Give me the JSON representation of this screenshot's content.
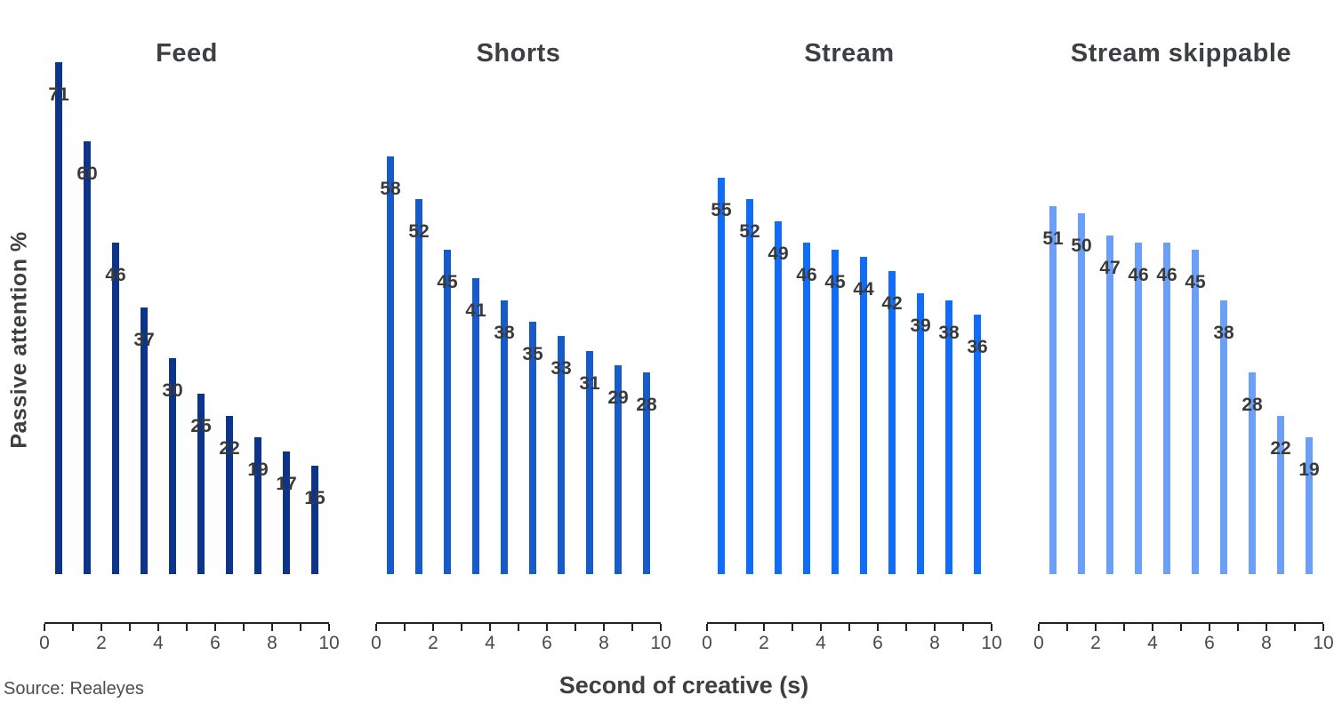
{
  "ylabel": "Passive attention %",
  "xlabel": "Second of creative (s)",
  "source": "Source: Realeyes",
  "chart_data": {
    "type": "bar",
    "layout": "small-multiples, 4 panels side by side, shared y scale, no gridlines, no y axis line",
    "title": "",
    "xlabel": "Second of creative (s)",
    "ylabel": "Passive attention %",
    "x": [
      0.5,
      1.5,
      2.5,
      3.5,
      4.5,
      5.5,
      6.5,
      7.5,
      8.5,
      9.5
    ],
    "xlim": [
      0,
      10
    ],
    "ylim": [
      0,
      75
    ],
    "x_tick_values": [
      0,
      1,
      2,
      3,
      4,
      5,
      6,
      7,
      8,
      9,
      10
    ],
    "x_tick_labels": [
      "0",
      "2",
      "4",
      "6",
      "8",
      "10"
    ],
    "x_labeled_ticks": [
      0,
      2,
      4,
      6,
      8,
      10
    ],
    "text_color": "#3c4043",
    "axis_color": "#222222",
    "panels": [
      {
        "title": "Feed",
        "color": "#0E3488",
        "values": [
          71,
          60,
          46,
          37,
          30,
          25,
          22,
          19,
          17,
          15
        ]
      },
      {
        "title": "Shorts",
        "color": "#155BCC",
        "values": [
          58,
          52,
          45,
          41,
          38,
          35,
          33,
          31,
          29,
          28
        ]
      },
      {
        "title": "Stream",
        "color": "#0E6DFB",
        "values": [
          55,
          52,
          49,
          46,
          45,
          44,
          42,
          39,
          38,
          36
        ]
      },
      {
        "title": "Stream skippable",
        "color": "#6CA0F7",
        "values": [
          51,
          50,
          47,
          46,
          46,
          45,
          38,
          28,
          22,
          19
        ]
      }
    ]
  }
}
